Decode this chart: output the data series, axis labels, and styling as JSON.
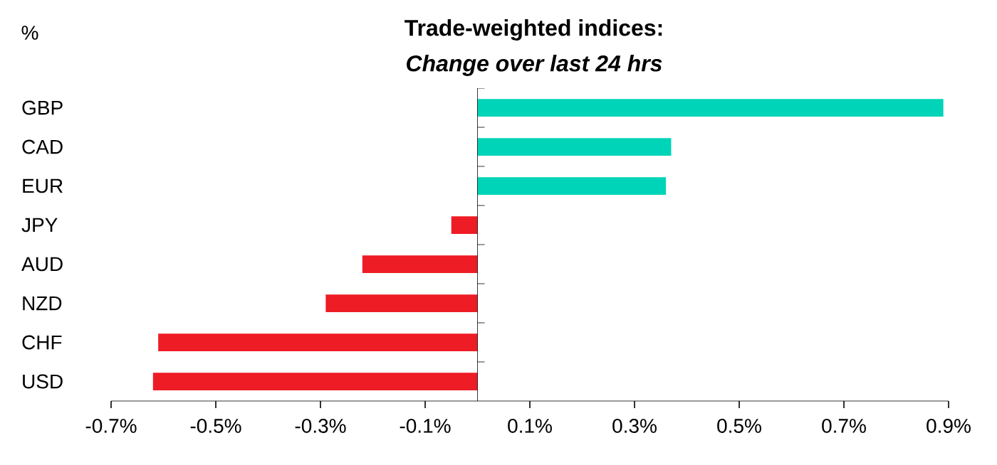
{
  "chart_data": {
    "type": "bar",
    "orientation": "horizontal",
    "title": "Trade-weighted indices:",
    "subtitle": "*Change over last 24 hrs*",
    "xlabel": "%",
    "categories": [
      "GBP",
      "CAD",
      "EUR",
      "JPY",
      "AUD",
      "NZD",
      "CHF",
      "USD"
    ],
    "values": [
      0.89,
      0.37,
      0.36,
      -0.05,
      -0.22,
      -0.29,
      -0.61,
      -0.62
    ],
    "colors": [
      "#00d4b8",
      "#00d4b8",
      "#00d4b8",
      "#ee1c25",
      "#ee1c25",
      "#ee1c25",
      "#ee1c25",
      "#ee1c25"
    ],
    "xlim": [
      -0.7,
      0.9
    ],
    "xticks": [
      {
        "value": -0.7,
        "label": "-0.7%"
      },
      {
        "value": -0.5,
        "label": "-0.5%"
      },
      {
        "value": -0.3,
        "label": "-0.3%"
      },
      {
        "value": -0.1,
        "label": "-0.1%"
      },
      {
        "value": 0.1,
        "label": "0.1%"
      },
      {
        "value": 0.3,
        "label": "0.3%"
      },
      {
        "value": 0.5,
        "label": "0.5%"
      },
      {
        "value": 0.7,
        "label": "0.7%"
      },
      {
        "value": 0.9,
        "label": "0.9%"
      }
    ],
    "grid": false
  }
}
